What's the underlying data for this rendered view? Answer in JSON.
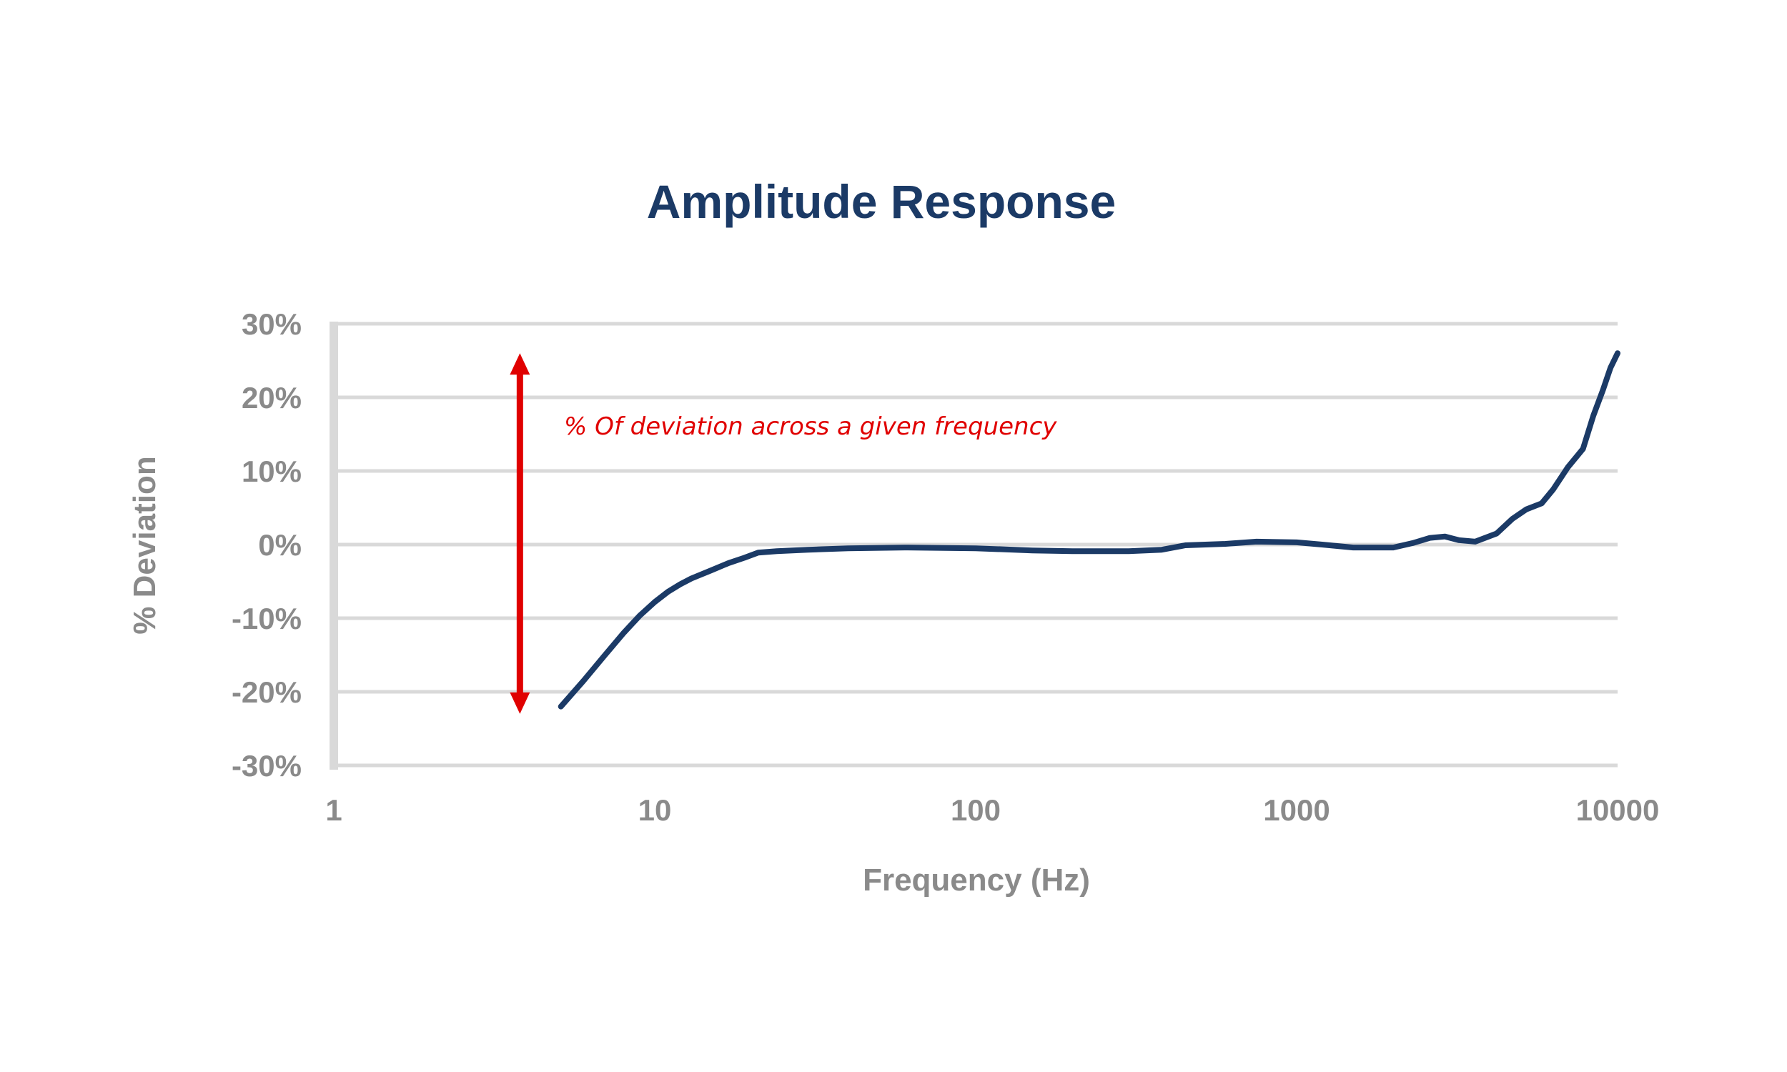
{
  "chart_data": {
    "type": "line",
    "title": "Amplitude Response",
    "xlabel": "Frequency (Hz)",
    "ylabel": "% Deviation",
    "x_scale": "log",
    "xlim": [
      1,
      10000
    ],
    "ylim": [
      -30,
      30
    ],
    "x_ticks": [
      "1",
      "10",
      "100",
      "1000",
      "10000"
    ],
    "y_ticks": [
      "30%",
      "20%",
      "10%",
      "0%",
      "-10%",
      "-20%",
      "-30%"
    ],
    "grid": true,
    "legend": "none",
    "colors": {
      "line": "#1b3a66",
      "annotation": "#e00000",
      "grid": "#d9d9d9",
      "tick_text": "#8a8a8a"
    },
    "annotation": {
      "text": "% Of deviation across a given frequency",
      "arrow_range": [
        26,
        -23
      ]
    },
    "series": [
      {
        "x": [
          5.1,
          6,
          7,
          8,
          9,
          10,
          11,
          12,
          13,
          15,
          17,
          19,
          21,
          24,
          30,
          40,
          60,
          100,
          150,
          200,
          300,
          380,
          450,
          600,
          750,
          1000,
          1200,
          1500,
          2000,
          2300,
          2600,
          2900,
          3200,
          3600,
          4200,
          4700,
          5200,
          5800,
          6300,
          7000,
          7800,
          8400,
          9000,
          9500,
          10000
        ],
        "y": [
          -22,
          -18.5,
          -15,
          -12,
          -9.6,
          -7.8,
          -6.4,
          -5.4,
          -4.6,
          -3.5,
          -2.5,
          -1.8,
          -1.1,
          -0.9,
          -0.7,
          -0.5,
          -0.4,
          -0.5,
          -0.8,
          -0.9,
          -0.9,
          -0.7,
          -0.1,
          0.1,
          0.4,
          0.3,
          0.0,
          -0.4,
          -0.4,
          0.2,
          0.9,
          1.1,
          0.6,
          0.4,
          1.5,
          3.5,
          4.8,
          5.6,
          7.5,
          10.5,
          13.0,
          17.5,
          21,
          24,
          26
        ]
      }
    ]
  }
}
